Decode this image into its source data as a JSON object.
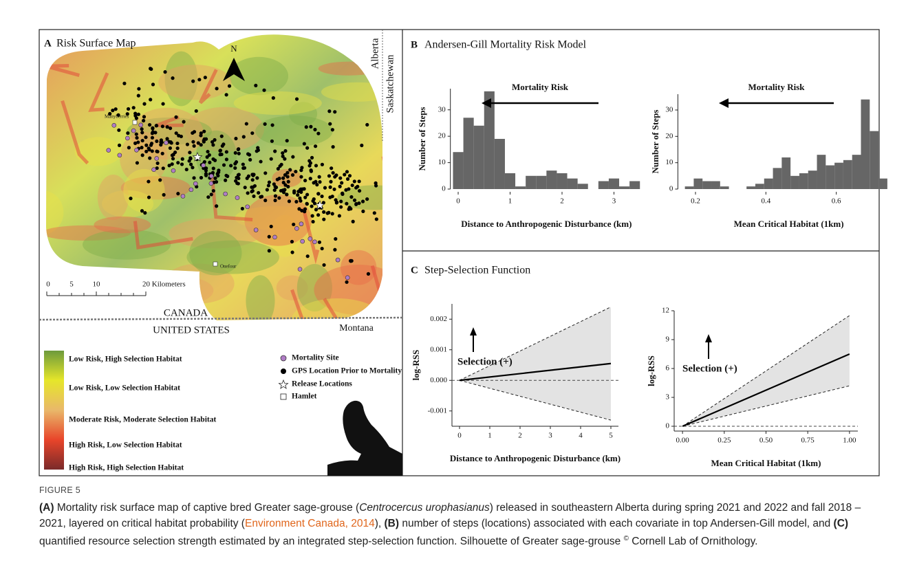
{
  "map": {
    "letter": "A",
    "title": "Risk Surface Map",
    "north": "N",
    "provinces": [
      "Alberta",
      "Saskatchewan"
    ],
    "countries": [
      "CANADA",
      "UNITED STATES"
    ],
    "state": "Montana",
    "hamlets": [
      "Manyberries",
      "Onefour"
    ],
    "scale_labels": [
      "0",
      "5",
      "10",
      "20 Kilometers"
    ],
    "risk_legend": [
      "Low Risk, High Selection Habitat",
      "Low Risk, Low Selection Habitat",
      "Moderate Risk, Moderate Selection Habitat",
      "High Risk, Low Selection Habitat",
      "High Risk, High Selection Habitat"
    ],
    "symbol_legend": [
      "Mortality Site",
      "GPS Location Prior to Mortality",
      "Release Locations",
      "Hamlet"
    ]
  },
  "panel_b": {
    "letter": "B",
    "title": "Andersen-Gill Mortality Risk Model"
  },
  "panel_c": {
    "letter": "C",
    "title": "Step-Selection Function"
  },
  "chart_data": [
    {
      "type": "histogram",
      "annotation": "Mortality Risk",
      "xlabel": "Distance to Anthropogenic Disturbance (km)",
      "ylabel": "Number of Steps",
      "bins": [
        -0.1,
        0.1,
        0.3,
        0.5,
        0.7,
        0.9,
        1.1,
        1.3,
        1.5,
        1.7,
        1.9,
        2.1,
        2.3,
        2.5,
        2.7,
        2.9,
        3.1,
        3.3,
        3.5
      ],
      "values": [
        14,
        27,
        24,
        37,
        19,
        6,
        1,
        5,
        5,
        7,
        6,
        4,
        2,
        0,
        3,
        4,
        1,
        3
      ],
      "color": "#666666",
      "xlim": [
        -0.15,
        3.55
      ],
      "xticks": [
        0,
        1,
        2,
        3
      ],
      "ylim": [
        0,
        38
      ],
      "yticks": [
        0,
        10,
        20,
        30
      ]
    },
    {
      "type": "histogram",
      "annotation": "Mortality Risk",
      "xlabel": "Mean Critical Habitat (1km)",
      "ylabel": "Number of Steps",
      "bins": [
        0.17,
        0.195,
        0.22,
        0.245,
        0.27,
        0.295,
        0.32,
        0.345,
        0.37,
        0.395,
        0.42,
        0.445,
        0.47,
        0.495,
        0.52,
        0.545,
        0.57,
        0.595,
        0.62,
        0.645,
        0.67,
        0.695,
        0.72,
        0.745
      ],
      "values": [
        1,
        4,
        3,
        3,
        1,
        0,
        0,
        1,
        2,
        4,
        8,
        12,
        5,
        6,
        7,
        13,
        9,
        10,
        11,
        13,
        34,
        22,
        4
      ],
      "color": "#666666",
      "xlim": [
        0.15,
        0.78
      ],
      "xticks": [
        0.2,
        0.4,
        0.6
      ],
      "ylim": [
        0,
        36
      ],
      "yticks": [
        0,
        10,
        20,
        30
      ]
    },
    {
      "type": "line",
      "annotation": "Selection (+)",
      "xlabel": "Distance to Anthropogenic Disturbance (km)",
      "ylabel": "log-RSS",
      "x": [
        0,
        5
      ],
      "values": [
        0,
        0.00055
      ],
      "ci_lower": [
        0,
        -0.0013
      ],
      "ci_upper": [
        0,
        0.0024
      ],
      "reference_line": 0,
      "color": "#000000",
      "band_color": "#e3e3e3",
      "xlim": [
        -0.25,
        5.25
      ],
      "xticks": [
        0,
        1,
        2,
        3,
        4,
        5
      ],
      "ylim": [
        -0.0015,
        0.0025
      ],
      "yticks": [
        -0.001,
        {
          "value": 0,
          "label": "0.000"
        },
        0.001,
        0.002
      ]
    },
    {
      "type": "line",
      "annotation": "Selection (+)",
      "xlabel": "Mean Critical Habitat (1km)",
      "ylabel": "log-RSS",
      "x": [
        0,
        1
      ],
      "values": [
        0,
        7.5
      ],
      "ci_lower": [
        0,
        4.2
      ],
      "ci_upper": [
        0,
        11.5
      ],
      "reference_line": 0,
      "color": "#000000",
      "band_color": "#e3e3e3",
      "xlim": [
        -0.05,
        1.05
      ],
      "xticks": [
        {
          "value": 0,
          "label": "0.00"
        },
        {
          "value": 0.25,
          "label": "0.25"
        },
        {
          "value": 0.5,
          "label": "0.50"
        },
        {
          "value": 0.75,
          "label": "0.75"
        },
        {
          "value": 1,
          "label": "1.00"
        }
      ],
      "ylim": [
        -0.5,
        12
      ],
      "yticks": [
        0,
        3,
        6,
        9,
        12
      ]
    }
  ],
  "caption": {
    "label": "FIGURE 5",
    "segments": [
      {
        "text": "(A)",
        "style": "bold"
      },
      {
        "text": " Mortality risk surface map of captive bred Greater sage-grouse (",
        "style": "normal"
      },
      {
        "text": "Centrocercus urophasianus",
        "style": "italic"
      },
      {
        "text": ") released in southeastern Alberta during spring 2021 and 2022 and fall 2018 – 2021, layered on critical habitat probability (",
        "style": "normal"
      },
      {
        "text": "Environment Canada, 2014",
        "style": "link"
      },
      {
        "text": "), ",
        "style": "normal"
      },
      {
        "text": "(B)",
        "style": "bold"
      },
      {
        "text": " number of steps (locations) associated with each covariate in top Andersen-Gill model, and ",
        "style": "normal"
      },
      {
        "text": "(C)",
        "style": "bold"
      },
      {
        "text": " quantified resource selection strength estimated by an integrated step-selection function. Silhouette of Greater sage-grouse ",
        "style": "normal"
      },
      {
        "text": "©",
        "style": "superscript"
      },
      {
        "text": " Cornell Lab of Ornithology.",
        "style": "normal"
      }
    ]
  }
}
